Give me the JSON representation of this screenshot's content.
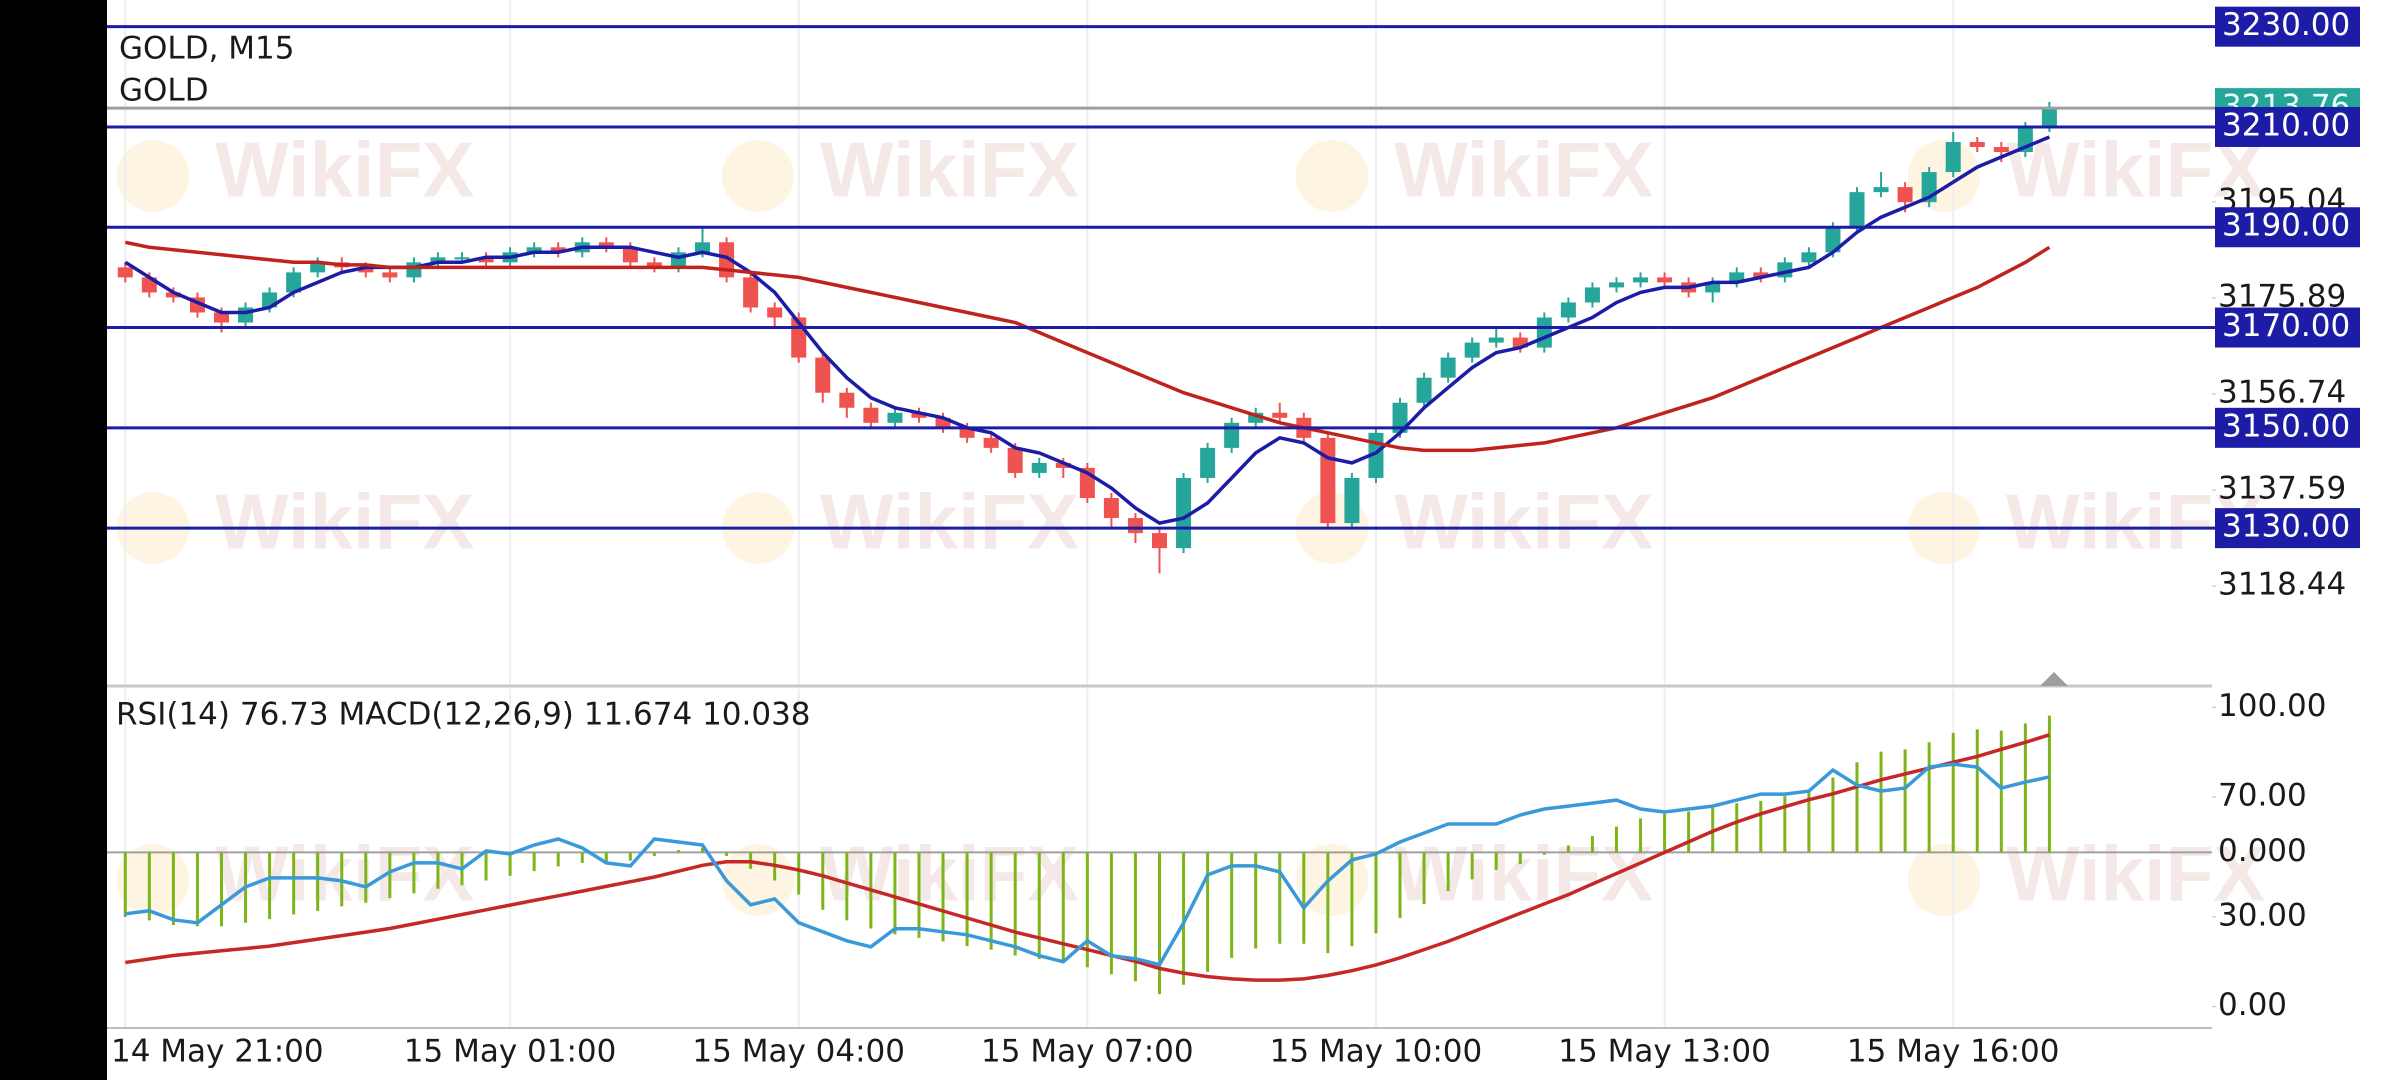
{
  "watermark": "WikiFX",
  "chart_data": [
    {
      "type": "candlestick",
      "title": "GOLD, M15",
      "subtitle": "GOLD",
      "up_color": "#26a69a",
      "down_color": "#ef5350",
      "open": [
        3182,
        3180,
        3177,
        3176,
        3173,
        3171,
        3174,
        3177,
        3181,
        3183,
        3182,
        3181,
        3180,
        3183,
        3184,
        3184,
        3183,
        3185,
        3186,
        3185,
        3187,
        3186,
        3183,
        3182,
        3185,
        3187,
        3180,
        3174,
        3172,
        3164,
        3157,
        3154,
        3151,
        3153,
        3152,
        3150,
        3148,
        3146,
        3141,
        3143,
        3142,
        3136,
        3132,
        3129,
        3126,
        3140,
        3146,
        3151,
        3153,
        3152,
        3148,
        3131,
        3140,
        3149,
        3155,
        3160,
        3164,
        3167,
        3168,
        3166,
        3172,
        3175,
        3178,
        3179,
        3180,
        3179,
        3177,
        3179,
        3181,
        3180,
        3183,
        3185,
        3190,
        3197,
        3198,
        3195,
        3201,
        3207,
        3206,
        3205,
        3210
      ],
      "high": [
        3183,
        3181,
        3178,
        3177,
        3174,
        3175,
        3178,
        3182,
        3184,
        3184,
        3183,
        3182,
        3184,
        3185,
        3185,
        3185,
        3186,
        3187,
        3187,
        3188,
        3188,
        3187,
        3184,
        3186,
        3190,
        3188,
        3181,
        3175,
        3173,
        3165,
        3158,
        3155,
        3154,
        3154,
        3153,
        3151,
        3149,
        3147,
        3144,
        3144,
        3143,
        3137,
        3133,
        3130,
        3141,
        3147,
        3152,
        3154,
        3155,
        3153,
        3149,
        3141,
        3150,
        3156,
        3161,
        3165,
        3168,
        3170,
        3169,
        3173,
        3176,
        3179,
        3180,
        3181,
        3181,
        3180,
        3180,
        3182,
        3182,
        3184,
        3186,
        3191,
        3198,
        3201,
        3199,
        3202,
        3209,
        3208,
        3207,
        3211,
        3215
      ],
      "low": [
        3179,
        3176,
        3175,
        3172,
        3169,
        3170,
        3173,
        3176,
        3180,
        3181,
        3180,
        3179,
        3179,
        3182,
        3183,
        3182,
        3182,
        3184,
        3184,
        3184,
        3185,
        3182,
        3181,
        3181,
        3184,
        3179,
        3173,
        3170,
        3163,
        3155,
        3152,
        3150,
        3150,
        3151,
        3149,
        3147,
        3145,
        3140,
        3140,
        3140,
        3135,
        3130,
        3127,
        3121,
        3125,
        3139,
        3145,
        3150,
        3151,
        3147,
        3130,
        3130,
        3139,
        3148,
        3154,
        3159,
        3163,
        3166,
        3165,
        3165,
        3171,
        3174,
        3177,
        3178,
        3178,
        3176,
        3175,
        3178,
        3179,
        3179,
        3182,
        3184,
        3189,
        3196,
        3193,
        3194,
        3200,
        3205,
        3203,
        3204,
        3209
      ],
      "close": [
        3180,
        3177,
        3176,
        3173,
        3171,
        3174,
        3177,
        3181,
        3183,
        3182,
        3181,
        3180,
        3183,
        3184,
        3184,
        3183,
        3185,
        3186,
        3185,
        3187,
        3186,
        3183,
        3182,
        3185,
        3187,
        3180,
        3174,
        3172,
        3164,
        3157,
        3154,
        3151,
        3153,
        3152,
        3150,
        3148,
        3146,
        3141,
        3143,
        3142,
        3136,
        3132,
        3129,
        3126,
        3140,
        3146,
        3151,
        3153,
        3152,
        3148,
        3131,
        3140,
        3149,
        3155,
        3160,
        3164,
        3167,
        3168,
        3166,
        3172,
        3175,
        3178,
        3179,
        3180,
        3179,
        3177,
        3179,
        3181,
        3180,
        3183,
        3185,
        3190,
        3197,
        3198,
        3195,
        3201,
        3207,
        3206,
        3205,
        3210,
        3213.76
      ],
      "series": [
        {
          "color": "#1c1ca6",
          "values": [
            3183,
            3180,
            3177,
            3175,
            3173,
            3173,
            3174,
            3177,
            3179,
            3181,
            3182,
            3182,
            3182,
            3183,
            3183,
            3184,
            3184,
            3185,
            3185,
            3186,
            3186,
            3186,
            3185,
            3184,
            3185,
            3184,
            3181,
            3177,
            3171,
            3165,
            3160,
            3156,
            3154,
            3153,
            3152,
            3150,
            3149,
            3146,
            3145,
            3143,
            3141,
            3138,
            3134,
            3131,
            3132,
            3135,
            3140,
            3145,
            3148,
            3147,
            3144,
            3143,
            3145,
            3149,
            3154,
            3158,
            3162,
            3165,
            3166,
            3168,
            3170,
            3172,
            3175,
            3177,
            3178,
            3178,
            3179,
            3179,
            3180,
            3181,
            3182,
            3185,
            3189,
            3192,
            3194,
            3196,
            3199,
            3202,
            3204,
            3206,
            3208
          ]
        },
        {
          "color": "#c0231e",
          "values": [
            3187,
            3186,
            3185.5,
            3185,
            3184.5,
            3184,
            3183.5,
            3183,
            3183,
            3182.5,
            3182.5,
            3182,
            3182,
            3182,
            3182,
            3182,
            3182,
            3182,
            3182,
            3182,
            3182,
            3182,
            3182,
            3182,
            3182,
            3181.5,
            3181,
            3180.5,
            3180,
            3179,
            3178,
            3177,
            3176,
            3175,
            3174,
            3173,
            3172,
            3171,
            3169,
            3167,
            3165,
            3163,
            3161,
            3159,
            3157,
            3155.5,
            3154,
            3152.5,
            3151,
            3150,
            3149,
            3148,
            3147,
            3146,
            3145.5,
            3145.5,
            3145.5,
            3146,
            3146.5,
            3147,
            3148,
            3149,
            3150,
            3151.5,
            3153,
            3154.5,
            3156,
            3158,
            3160,
            3162,
            3164,
            3166,
            3168,
            3170,
            3172,
            3174,
            3176,
            3178,
            3180.5,
            3183,
            3186
          ]
        }
      ],
      "levels": [
        {
          "value": 3230,
          "label": "3230.00"
        },
        {
          "value": 3210,
          "label": "3210.00"
        },
        {
          "value": 3190,
          "label": "3190.00"
        },
        {
          "value": 3170,
          "label": "3170.00"
        },
        {
          "value": 3150,
          "label": "3150.00"
        },
        {
          "value": 3130,
          "label": "3130.00"
        }
      ],
      "level_color": "#1c1ca6",
      "last_price": 3213.76,
      "last_price_color": "#26a69a",
      "xlim": [
        -0.76,
        86.76
      ],
      "ylim": [
        3098.91,
        3235.32
      ],
      "yticks": [
        3118.44,
        3137.59,
        3156.74,
        3175.89,
        3195.04
      ]
    },
    {
      "type": "indicator",
      "title": "RSI(14) 76.73 MACD(12,26,9) 11.674 10.038",
      "series": [
        {
          "type": "bar",
          "axis": "y2",
          "color": "#7cb518",
          "values": [
            -5.5,
            -5.8,
            -6.2,
            -6.3,
            -6.3,
            -6.0,
            -5.7,
            -5.3,
            -5.0,
            -4.6,
            -4.3,
            -3.9,
            -3.5,
            -3.1,
            -2.8,
            -2.4,
            -2.0,
            -1.6,
            -1.2,
            -0.9,
            -0.8,
            -0.7,
            -0.3,
            0.2,
            0.4,
            -0.3,
            -1.4,
            -2.4,
            -3.6,
            -4.9,
            -5.8,
            -6.5,
            -7.0,
            -7.3,
            -7.6,
            -8.0,
            -8.3,
            -8.8,
            -9.1,
            -9.3,
            -9.8,
            -10.4,
            -11.0,
            -12.1,
            -11.3,
            -10.2,
            -9.0,
            -8.2,
            -7.8,
            -7.8,
            -8.6,
            -8.0,
            -6.9,
            -5.6,
            -4.4,
            -3.3,
            -2.3,
            -1.5,
            -1.0,
            -0.2,
            0.6,
            1.4,
            2.2,
            2.9,
            3.3,
            3.5,
            3.8,
            4.2,
            4.4,
            4.8,
            5.3,
            6.4,
            7.7,
            8.6,
            8.8,
            9.4,
            10.2,
            10.5,
            10.4,
            11.0,
            11.674
          ]
        },
        {
          "type": "line",
          "axis": "y2",
          "color": "#c62828",
          "values": [
            -9.4,
            -9.1,
            -8.8,
            -8.6,
            -8.4,
            -8.2,
            -8.0,
            -7.7,
            -7.4,
            -7.1,
            -6.8,
            -6.5,
            -6.1,
            -5.7,
            -5.3,
            -4.9,
            -4.5,
            -4.1,
            -3.7,
            -3.3,
            -2.9,
            -2.5,
            -2.1,
            -1.6,
            -1.1,
            -0.8,
            -0.8,
            -1.1,
            -1.5,
            -2.0,
            -2.6,
            -3.2,
            -3.8,
            -4.4,
            -5.0,
            -5.6,
            -6.2,
            -6.8,
            -7.3,
            -7.8,
            -8.3,
            -8.8,
            -9.3,
            -9.9,
            -10.3,
            -10.6,
            -10.8,
            -10.9,
            -10.9,
            -10.8,
            -10.5,
            -10.1,
            -9.6,
            -9.0,
            -8.3,
            -7.6,
            -6.8,
            -6.0,
            -5.2,
            -4.4,
            -3.6,
            -2.7,
            -1.8,
            -0.9,
            0.0,
            0.9,
            1.8,
            2.6,
            3.3,
            3.9,
            4.5,
            5.0,
            5.6,
            6.2,
            6.7,
            7.2,
            7.7,
            8.2,
            8.8,
            9.4,
            10.038
          ]
        },
        {
          "type": "line",
          "axis": "y",
          "color": "#3a9ad9",
          "values": [
            31,
            32,
            29,
            28,
            34,
            40,
            43,
            43,
            43,
            42,
            40,
            45,
            48,
            48,
            46,
            52,
            51,
            54,
            56,
            53,
            48,
            47,
            56,
            55,
            54,
            42,
            34,
            36,
            28,
            25,
            22,
            20,
            26,
            26,
            25,
            24,
            22,
            20,
            17,
            15,
            22,
            17,
            16,
            14,
            28,
            44,
            47,
            47,
            45,
            33,
            42,
            49,
            51,
            55,
            58,
            61,
            61,
            61,
            64,
            66,
            67,
            68,
            69,
            66,
            65,
            66,
            67,
            69,
            71,
            71,
            72,
            79,
            74,
            72,
            73,
            80,
            81,
            80,
            73,
            75,
            76.73
          ]
        }
      ],
      "xlim": [
        -0.76,
        86.76
      ],
      "xticks": [
        {
          "value": 0,
          "label": "14 May 21:00"
        },
        {
          "value": 16,
          "label": "15 May 01:00"
        },
        {
          "value": 28,
          "label": "15 May 04:00"
        },
        {
          "value": 40,
          "label": "15 May 07:00"
        },
        {
          "value": 52,
          "label": "15 May 10:00"
        },
        {
          "value": 64,
          "label": "15 May 13:00"
        },
        {
          "value": 76,
          "label": "15 May 16:00"
        }
      ],
      "ylim": [
        -7.14,
        106.1
      ],
      "yticks": [
        {
          "value": 100,
          "label": "100.00"
        },
        {
          "value": 70,
          "label": "70.00"
        },
        {
          "value": 30,
          "label": "30.00"
        },
        {
          "value": 0,
          "label": "0.00"
        }
      ],
      "y2lim": [
        -14.99,
        13.95
      ],
      "y2ticks": [
        {
          "value": 0,
          "label": "0.000"
        }
      ]
    }
  ]
}
